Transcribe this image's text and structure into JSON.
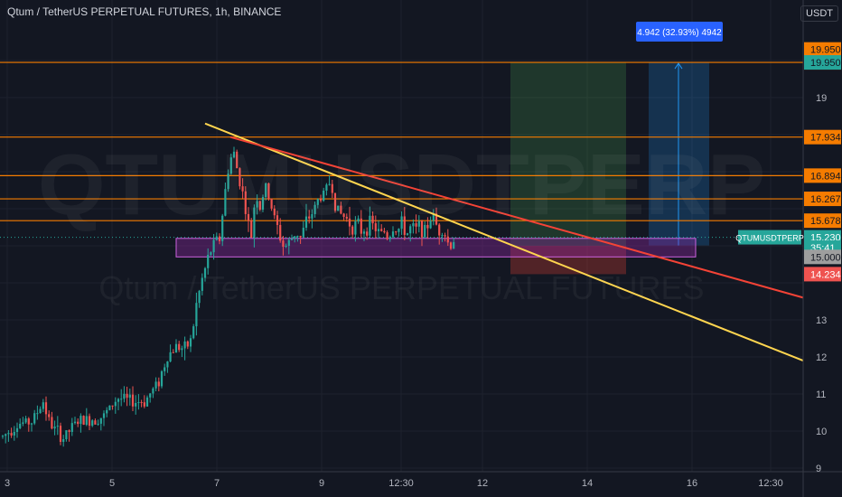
{
  "title": "Qtum / TetherUS PERPETUAL FUTURES, 1h, BINANCE",
  "watermark": {
    "symbol": "QTUMUSDTPERP",
    "name": "Qtum / TetherUS PERPETUAL FUTURES"
  },
  "unit_label": "USDT",
  "colors": {
    "background": "#131722",
    "grid": "#1e222d",
    "up": "#26a69a",
    "down": "#ef5350",
    "orange": "#f57c00",
    "yellow": "#ffd54f",
    "red": "#f44336",
    "purple": "#9c27b0",
    "green_zone": "#4caf50",
    "blue": "#2196f3"
  },
  "chart_data": {
    "type": "candlestick",
    "symbol": "QTUMUSDTPERP",
    "exchange": "BINANCE",
    "interval": "1h",
    "ylim": [
      9,
      20.8
    ],
    "y_ticks": [
      9,
      10,
      11,
      12,
      13,
      19
    ],
    "x_ticks": [
      "3",
      "5",
      "7",
      "9",
      "12:30",
      "12",
      "14",
      "16",
      "12:30"
    ],
    "price_path": [
      [
        3,
        9.85
      ],
      [
        20,
        10.2
      ],
      [
        35,
        10.25
      ],
      [
        48,
        10.8
      ],
      [
        55,
        10.2
      ],
      [
        70,
        9.8
      ],
      [
        85,
        10.25
      ],
      [
        100,
        10.3
      ],
      [
        115,
        10.4
      ],
      [
        130,
        10.9
      ],
      [
        145,
        10.8
      ],
      [
        160,
        10.8
      ],
      [
        175,
        11.3
      ],
      [
        185,
        12.0
      ],
      [
        195,
        12.3
      ],
      [
        205,
        12.2
      ],
      [
        212,
        12.5
      ],
      [
        218,
        13.5
      ],
      [
        225,
        14.2
      ],
      [
        232,
        14.8
      ],
      [
        238,
        15.1
      ],
      [
        243,
        15.2
      ],
      [
        248,
        16.2
      ],
      [
        252,
        17.0
      ],
      [
        258,
        17.6
      ],
      [
        263,
        17.0
      ],
      [
        268,
        16.5
      ],
      [
        273,
        15.8
      ],
      [
        278,
        15.2
      ],
      [
        283,
        16.5
      ],
      [
        288,
        16.0
      ],
      [
        293,
        16.6
      ],
      [
        298,
        16.3
      ],
      [
        303,
        15.8
      ],
      [
        308,
        15.4
      ],
      [
        313,
        15.0
      ],
      [
        318,
        15.0
      ],
      [
        323,
        15.2
      ],
      [
        328,
        15.4
      ],
      [
        333,
        15.2
      ],
      [
        338,
        15.6
      ],
      [
        343,
        15.8
      ],
      [
        348,
        16.0
      ],
      [
        353,
        16.3
      ],
      [
        358,
        16.4
      ],
      [
        363,
        16.6
      ],
      [
        366,
        16.8
      ],
      [
        370,
        16.2
      ],
      [
        375,
        15.9
      ],
      [
        380,
        15.8
      ],
      [
        385,
        15.7
      ],
      [
        390,
        15.5
      ],
      [
        395,
        15.6
      ],
      [
        400,
        15.4
      ],
      [
        405,
        15.5
      ],
      [
        410,
        15.6
      ],
      [
        415,
        15.5
      ],
      [
        420,
        15.3
      ],
      [
        425,
        15.4
      ],
      [
        430,
        15.2
      ],
      [
        435,
        15.5
      ],
      [
        440,
        15.4
      ],
      [
        445,
        15.6
      ],
      [
        450,
        15.3
      ],
      [
        455,
        15.5
      ],
      [
        460,
        15.4
      ],
      [
        465,
        15.6
      ],
      [
        470,
        15.3
      ],
      [
        475,
        15.7
      ],
      [
        480,
        15.8
      ],
      [
        485,
        15.4
      ],
      [
        490,
        15.5
      ],
      [
        495,
        15.1
      ],
      [
        500,
        15.0
      ],
      [
        503,
        15.23
      ]
    ],
    "horizontal_levels": [
      {
        "price": "19.950",
        "value": 19.95,
        "tag_color": "#f57c00"
      },
      {
        "price": "17.934",
        "value": 17.934,
        "tag_color": "#f57c00"
      },
      {
        "price": "16.894",
        "value": 16.894,
        "tag_color": "#f57c00"
      },
      {
        "price": "16.267",
        "value": 16.267,
        "tag_color": "#f57c00"
      },
      {
        "price": "15.678",
        "value": 15.678,
        "tag_color": "#f57c00"
      }
    ],
    "price_tags": [
      {
        "label": "19.950",
        "value": 20.3,
        "bg": "#f57c00",
        "fg": "#131722"
      },
      {
        "label": "19.950",
        "value": 19.95,
        "bg": "#26a69a",
        "fg": "#131722"
      },
      {
        "label": "QTUMUSDTPERP",
        "value": 15.23,
        "bg": "#26a69a",
        "fg": "#ffffff",
        "left": true
      },
      {
        "label": "15.230",
        "value": 15.23,
        "bg": "#26a69a",
        "fg": "#ffffff"
      },
      {
        "label": "35:41",
        "value": 14.95,
        "bg": "#26a69a",
        "fg": "#ffffff"
      },
      {
        "label": "15.000",
        "value": 14.7,
        "bg": "#9e9e9e",
        "fg": "#131722"
      },
      {
        "label": "14.234",
        "value": 14.234,
        "bg": "#ef5350",
        "fg": "#ffffff"
      }
    ],
    "trendlines": [
      {
        "name": "yellow-trendline",
        "color": "#ffd54f",
        "from": [
          227,
          18.3
        ],
        "to": [
          889,
          11.9
        ]
      },
      {
        "name": "red-trendline",
        "color": "#f44336",
        "from": [
          255,
          17.934
        ],
        "to": [
          889,
          13.6
        ]
      }
    ],
    "support_zone": {
      "x_from": 195,
      "x_to": 770,
      "high": 15.2,
      "low": 14.7
    },
    "position": {
      "x_from": 565,
      "x_to": 693,
      "target": 19.95,
      "entry": 15.0,
      "stop": 14.234
    },
    "measure": {
      "label": "4.942 (32.93%) 4942",
      "x_from": 718,
      "x_to": 785,
      "top": 19.95,
      "bottom": 15.01,
      "arrow_x": 751
    }
  }
}
